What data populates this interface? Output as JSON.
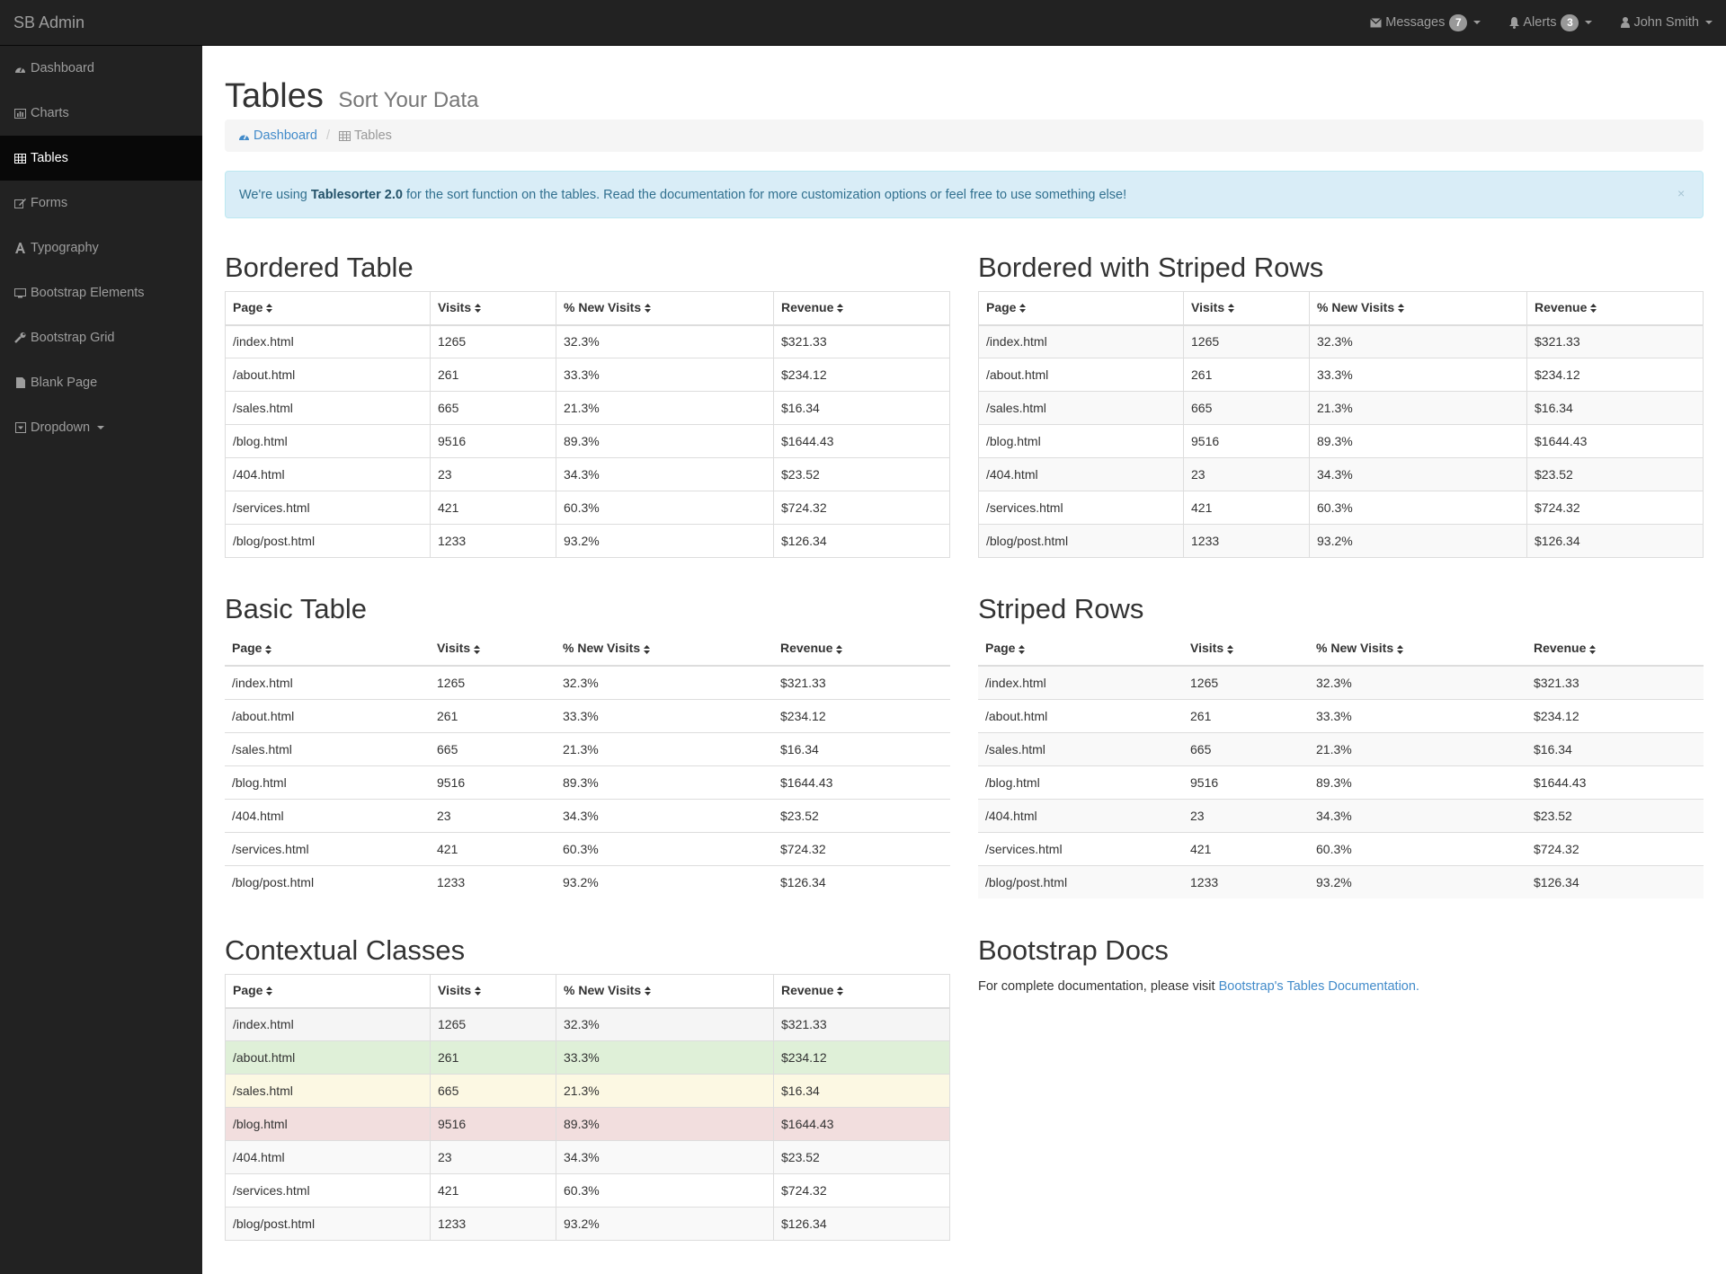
{
  "brand": "SB Admin",
  "topnav": {
    "messages": {
      "label": "Messages",
      "count": "7"
    },
    "alerts": {
      "label": "Alerts",
      "count": "3"
    },
    "user": {
      "label": "John Smith"
    }
  },
  "sidebar": {
    "items": [
      {
        "label": "Dashboard",
        "icon": "dashboard-icon"
      },
      {
        "label": "Charts",
        "icon": "bar-chart-icon"
      },
      {
        "label": "Tables",
        "icon": "table-icon",
        "active": true
      },
      {
        "label": "Forms",
        "icon": "edit-icon"
      },
      {
        "label": "Typography",
        "icon": "font-icon"
      },
      {
        "label": "Bootstrap Elements",
        "icon": "desktop-icon"
      },
      {
        "label": "Bootstrap Grid",
        "icon": "wrench-icon"
      },
      {
        "label": "Blank Page",
        "icon": "file-icon"
      },
      {
        "label": "Dropdown",
        "icon": "caret-square-icon"
      }
    ]
  },
  "page": {
    "title": "Tables",
    "subtitle": "Sort Your Data"
  },
  "breadcrumb": {
    "home": "Dashboard",
    "current": "Tables"
  },
  "alert": {
    "prefix": "We're using",
    "strong": "Tablesorter 2.0",
    "suffix": "for the sort function on the tables. Read the documentation for more customization options or feel free to use something else!",
    "close": "×"
  },
  "tables": {
    "headers": [
      "Page",
      "Visits",
      "% New Visits",
      "Revenue"
    ],
    "rows": [
      [
        "/index.html",
        "1265",
        "32.3%",
        "$321.33"
      ],
      [
        "/about.html",
        "261",
        "33.3%",
        "$234.12"
      ],
      [
        "/sales.html",
        "665",
        "21.3%",
        "$16.34"
      ],
      [
        "/blog.html",
        "9516",
        "89.3%",
        "$1644.43"
      ],
      [
        "/404.html",
        "23",
        "34.3%",
        "$23.52"
      ],
      [
        "/services.html",
        "421",
        "60.3%",
        "$724.32"
      ],
      [
        "/blog/post.html",
        "1233",
        "93.2%",
        "$126.34"
      ]
    ],
    "bordered_title": "Bordered Table",
    "bordered_striped_title": "Bordered with Striped Rows",
    "basic_title": "Basic Table",
    "striped_title": "Striped Rows",
    "contextual_title": "Contextual Classes",
    "contextual_classes": [
      "active",
      "success",
      "warning",
      "danger",
      "",
      "",
      ""
    ]
  },
  "docs": {
    "title": "Bootstrap Docs",
    "text": "For complete documentation, please visit",
    "link": "Bootstrap's Tables Documentation."
  },
  "colors": {
    "navbar": "#222222",
    "link": "#428bca",
    "alert_bg": "#d9edf7",
    "success": "#dff0d8",
    "warning": "#fcf8e3",
    "danger": "#f2dede"
  }
}
